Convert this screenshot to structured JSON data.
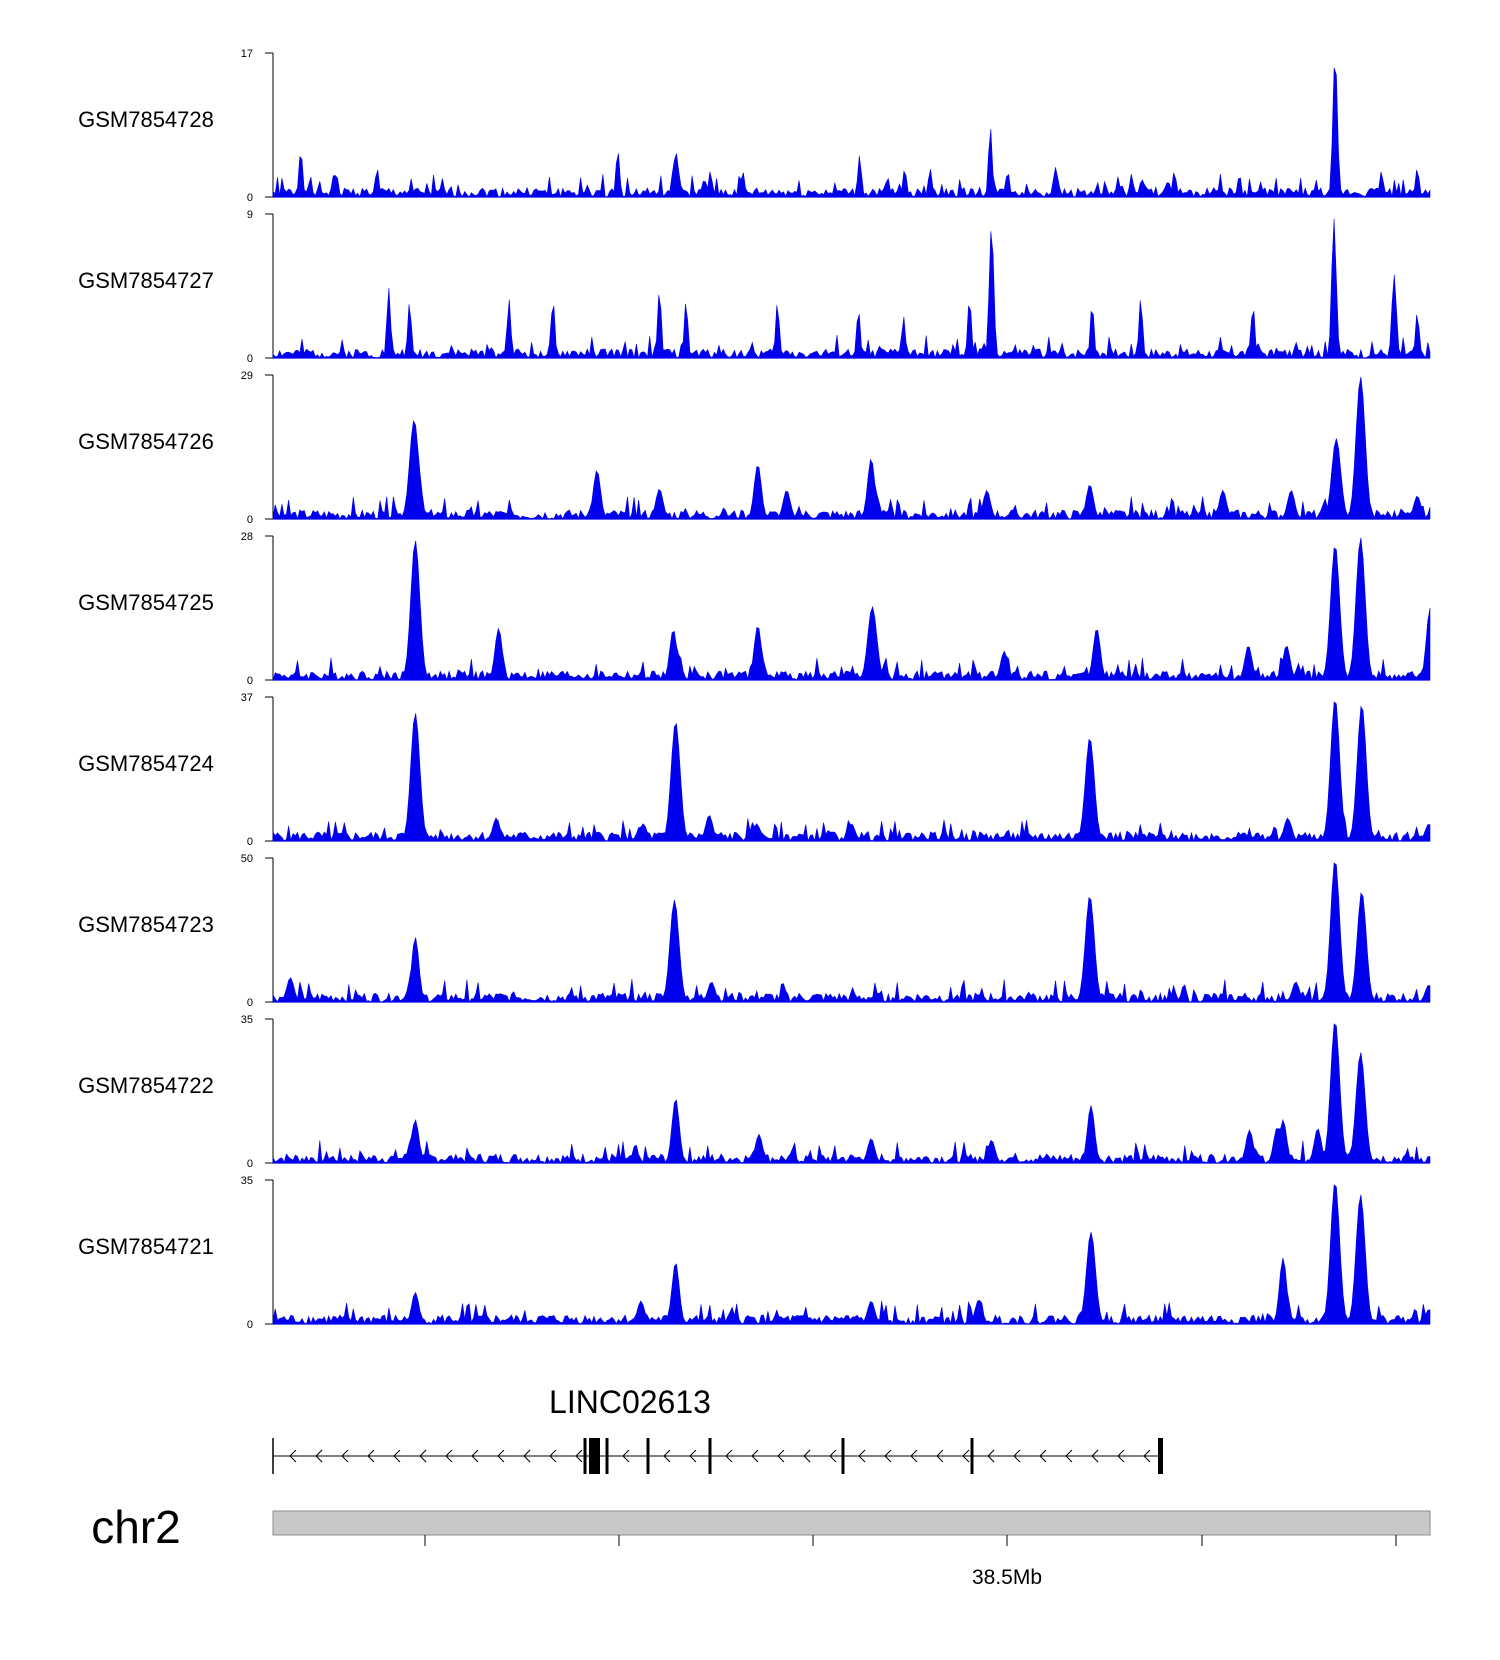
{
  "chart_data": {
    "type": "area",
    "color": "#0000ee",
    "x_range": [
      0,
      1000
    ],
    "tracks": [
      {
        "name": "GSM7854728",
        "ymax": 17,
        "ymin": 0,
        "peaks": [
          [
            24,
            0.33
          ],
          [
            53,
            0.18
          ],
          [
            90,
            0.2
          ],
          [
            298,
            0.33
          ],
          [
            348,
            0.34
          ],
          [
            350,
            0.2
          ],
          [
            378,
            0.18
          ],
          [
            406,
            0.18
          ],
          [
            507,
            0.29
          ],
          [
            546,
            0.2
          ],
          [
            568,
            0.2
          ],
          [
            620,
            0.49
          ],
          [
            635,
            0.18
          ],
          [
            676,
            0.21
          ],
          [
            742,
            0.16
          ],
          [
            779,
            0.18
          ],
          [
            835,
            0.14
          ],
          [
            918,
            0.99
          ],
          [
            958,
            0.18
          ],
          [
            989,
            0.2
          ]
        ]
      },
      {
        "name": "GSM7854727",
        "ymax": 9,
        "ymin": 0,
        "peaks": [
          [
            100,
            0.49
          ],
          [
            118,
            0.39
          ],
          [
            204,
            0.41
          ],
          [
            242,
            0.41
          ],
          [
            334,
            0.48
          ],
          [
            357,
            0.4
          ],
          [
            436,
            0.39
          ],
          [
            506,
            0.34
          ],
          [
            545,
            0.29
          ],
          [
            602,
            0.42
          ],
          [
            621,
            0.92
          ],
          [
            708,
            0.38
          ],
          [
            750,
            0.42
          ],
          [
            847,
            0.37
          ],
          [
            917,
            0.97
          ],
          [
            969,
            0.58
          ],
          [
            989,
            0.32
          ]
        ]
      },
      {
        "name": "GSM7854726",
        "ymax": 29,
        "ymin": 0,
        "peaks": [
          [
            122,
            0.69
          ],
          [
            125,
            0.4
          ],
          [
            280,
            0.34
          ],
          [
            334,
            0.21
          ],
          [
            419,
            0.38
          ],
          [
            444,
            0.2
          ],
          [
            517,
            0.42
          ],
          [
            521,
            0.18
          ],
          [
            617,
            0.2
          ],
          [
            706,
            0.24
          ],
          [
            821,
            0.2
          ],
          [
            880,
            0.2
          ],
          [
            919,
            0.56
          ],
          [
            940,
            0.99
          ],
          [
            989,
            0.16
          ]
        ]
      },
      {
        "name": "GSM7854725",
        "ymax": 28,
        "ymin": 0,
        "peaks": [
          [
            123,
            0.97
          ],
          [
            121,
            0.3
          ],
          [
            195,
            0.36
          ],
          [
            346,
            0.35
          ],
          [
            350,
            0.18
          ],
          [
            419,
            0.38
          ],
          [
            422,
            0.17
          ],
          [
            518,
            0.51
          ],
          [
            632,
            0.2
          ],
          [
            712,
            0.36
          ],
          [
            843,
            0.24
          ],
          [
            876,
            0.24
          ],
          [
            918,
            0.94
          ],
          [
            940,
            0.99
          ],
          [
            1000,
            0.5
          ]
        ]
      },
      {
        "name": "GSM7854724",
        "ymax": 37,
        "ymin": 0,
        "peaks": [
          [
            123,
            0.89
          ],
          [
            120,
            0.18
          ],
          [
            193,
            0.16
          ],
          [
            320,
            0.12
          ],
          [
            348,
            0.83
          ],
          [
            377,
            0.18
          ],
          [
            418,
            0.12
          ],
          [
            500,
            0.12
          ],
          [
            706,
            0.72
          ],
          [
            877,
            0.16
          ],
          [
            918,
            0.99
          ],
          [
            941,
            0.95
          ],
          [
            999,
            0.12
          ]
        ]
      },
      {
        "name": "GSM7854723",
        "ymax": 50,
        "ymin": 0,
        "peaks": [
          [
            15,
            0.17
          ],
          [
            123,
            0.45
          ],
          [
            120,
            0.2
          ],
          [
            347,
            0.71
          ],
          [
            379,
            0.14
          ],
          [
            706,
            0.74
          ],
          [
            884,
            0.14
          ],
          [
            918,
            0.99
          ],
          [
            941,
            0.77
          ],
          [
            999,
            0.12
          ]
        ]
      },
      {
        "name": "GSM7854722",
        "ymax": 35,
        "ymin": 0,
        "peaks": [
          [
            123,
            0.3
          ],
          [
            120,
            0.18
          ],
          [
            348,
            0.45
          ],
          [
            420,
            0.2
          ],
          [
            517,
            0.17
          ],
          [
            621,
            0.16
          ],
          [
            707,
            0.4
          ],
          [
            844,
            0.23
          ],
          [
            868,
            0.25
          ],
          [
            873,
            0.3
          ],
          [
            903,
            0.24
          ],
          [
            918,
            0.99
          ],
          [
            919,
            0.6
          ],
          [
            940,
            0.77
          ]
        ]
      },
      {
        "name": "GSM7854721",
        "ymax": 35,
        "ymin": 0,
        "peaks": [
          [
            123,
            0.22
          ],
          [
            348,
            0.43
          ],
          [
            318,
            0.16
          ],
          [
            517,
            0.16
          ],
          [
            610,
            0.17
          ],
          [
            707,
            0.64
          ],
          [
            873,
            0.46
          ],
          [
            918,
            0.99
          ],
          [
            916,
            0.3
          ],
          [
            940,
            0.9
          ],
          [
            999,
            0.1
          ]
        ]
      }
    ],
    "gene": {
      "name": "LINC02613",
      "strand": "-"
    },
    "chromosome": "chr2",
    "axis_tick_label": "38.5Mb"
  }
}
